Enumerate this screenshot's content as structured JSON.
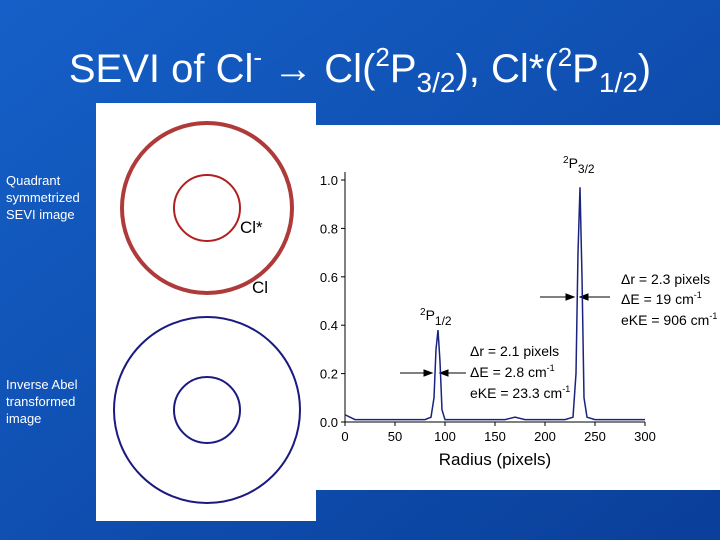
{
  "title": [
    "SEVI of Cl",
    "-",
    " → Cl(",
    "2",
    "P",
    "3/2",
    "), Cl*(",
    "2",
    "P",
    "1/2",
    ")"
  ],
  "image_labels": {
    "top": [
      "Quadrant",
      "symmetrized",
      "SEVI image"
    ],
    "bottom": [
      "Inverse Abel",
      "transformed",
      "image"
    ],
    "inner_top": "Cl*",
    "inner_bottom": "Cl"
  },
  "chart_data": {
    "type": "line",
    "xlabel": "Radius (pixels)",
    "color": "#1a237e",
    "x": [
      0,
      10,
      20,
      30,
      40,
      50,
      60,
      70,
      80,
      86,
      89,
      91,
      93,
      95,
      97,
      100,
      110,
      120,
      130,
      140,
      150,
      160,
      170,
      180,
      190,
      200,
      210,
      220,
      228,
      231,
      233,
      235,
      237,
      239,
      242,
      250,
      260,
      270,
      280,
      290,
      300
    ],
    "values": [
      0.03,
      0.01,
      0.01,
      0.01,
      0.01,
      0.01,
      0.01,
      0.01,
      0.01,
      0.02,
      0.1,
      0.3,
      0.38,
      0.25,
      0.05,
      0.01,
      0.01,
      0.01,
      0.01,
      0.01,
      0.01,
      0.01,
      0.02,
      0.01,
      0.01,
      0.01,
      0.01,
      0.01,
      0.02,
      0.2,
      0.7,
      0.97,
      0.6,
      0.1,
      0.02,
      0.01,
      0.01,
      0.01,
      0.01,
      0.01,
      0.01
    ],
    "xlim": [
      0,
      300
    ],
    "xticks": [
      0,
      50,
      100,
      150,
      200,
      250,
      300
    ],
    "ylim": [
      0,
      1
    ],
    "yticks": [
      {
        "value": 0,
        "label": "0.0"
      },
      0.2,
      0.4,
      0.6,
      0.8,
      {
        "value": 1,
        "label": "1.0"
      }
    ],
    "annotations": {
      "peak_high": [
        "2",
        "P",
        "3/2"
      ],
      "peak_low": [
        "2",
        "P",
        "1/2"
      ],
      "high_info": [
        [
          "Δr = 2.3 pixels"
        ],
        [
          "ΔE = 19 cm",
          "-1"
        ],
        [
          "eKE = 906 cm",
          "-1"
        ]
      ],
      "low_info": [
        [
          "Δr = 2.1 pixels"
        ],
        [
          "ΔE = 2.8 cm",
          "-1"
        ],
        [
          "eKE = 23.3 cm",
          "-1"
        ]
      ]
    }
  }
}
